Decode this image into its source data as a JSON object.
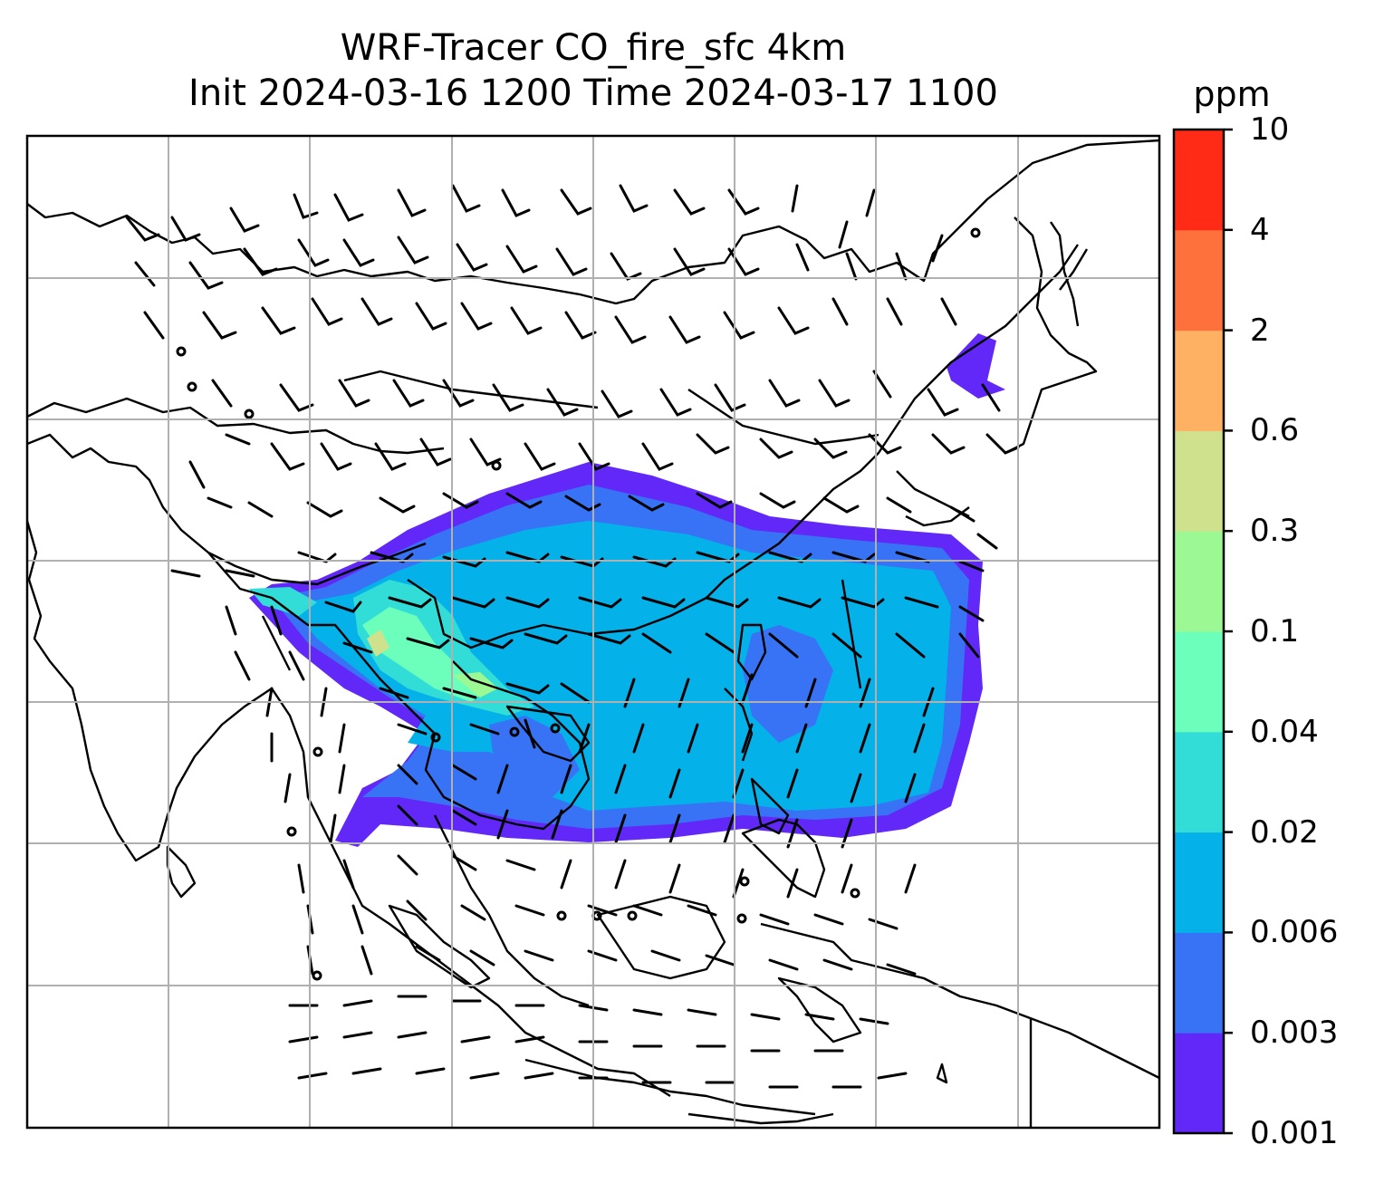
{
  "title": {
    "line1": "WRF-Tracer CO_fire_sfc 4km",
    "line2": "Init 2024-03-16 1200 Time 2024-03-17 1100"
  },
  "colorbar": {
    "unit": "ppm",
    "ticks": [
      "0.001",
      "0.003",
      "0.006",
      "0.02",
      "0.04",
      "0.1",
      "0.3",
      "0.6",
      "2",
      "4",
      "10"
    ],
    "colors": [
      "#6128f8",
      "#3873f6",
      "#04b1e9",
      "#31ddd6",
      "#6cffbb",
      "#9bf892",
      "#cfe18c",
      "#feb063",
      "#ff713c",
      "#ff2b17"
    ]
  },
  "map": {
    "overlays": [
      "fire-co-tracer-contours",
      "wind-barbs",
      "coastlines",
      "country-borders",
      "lat-lon-gridlines"
    ]
  }
}
